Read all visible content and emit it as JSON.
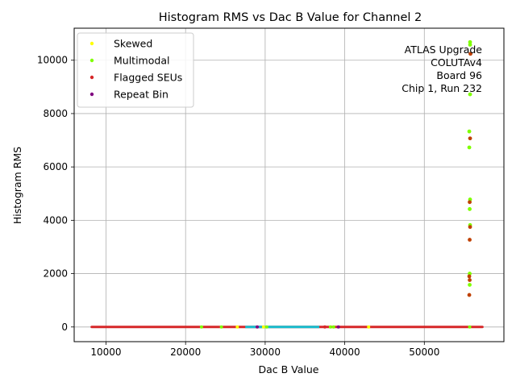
{
  "colors": {
    "skewed": "#ffff00",
    "multimodal": "#7fff00",
    "flagged": "#d62728",
    "repeat": "#800080",
    "dense_band": "#17becf",
    "flagged_on_green": "#bf4000",
    "grid": "#b0b0b0"
  },
  "chart_data": {
    "type": "scatter",
    "title": "Histogram RMS vs Dac B Value for Channel 2",
    "xlabel": "Dac B Value",
    "ylabel": "Histogram RMS",
    "xlim": [
      6000,
      60000
    ],
    "ylim": [
      -550,
      11200
    ],
    "xticks": [
      10000,
      20000,
      30000,
      40000,
      50000
    ],
    "yticks": [
      0,
      2000,
      4000,
      6000,
      8000,
      10000
    ],
    "grid": true,
    "legend_position": "top-left",
    "annotation": [
      "ATLAS Upgrade",
      "COLUTAv4",
      "Board 96",
      "Chip 1, Run 232"
    ],
    "baseline": {
      "x_range": [
        8200,
        57300
      ],
      "y": 0,
      "dense_band_x": [
        27500,
        36800
      ],
      "scattered_marks": [
        {
          "x": 22000,
          "series": "multimodal"
        },
        {
          "x": 24500,
          "series": "multimodal"
        },
        {
          "x": 26500,
          "series": "skewed"
        },
        {
          "x": 29000,
          "series": "repeat"
        },
        {
          "x": 29800,
          "series": "skewed"
        },
        {
          "x": 30200,
          "series": "multimodal"
        },
        {
          "x": 37500,
          "series": "flagged"
        },
        {
          "x": 38200,
          "series": "multimodal"
        },
        {
          "x": 38600,
          "series": "multimodal"
        },
        {
          "x": 39200,
          "series": "repeat"
        },
        {
          "x": 43000,
          "series": "skewed"
        },
        {
          "x": 55700,
          "series": "multimodal"
        }
      ]
    },
    "series": [
      {
        "name": "Skewed",
        "key": "skewed",
        "points": []
      },
      {
        "name": "Multimodal",
        "key": "multimodal",
        "points": [
          {
            "x": 55750,
            "y": 10680
          },
          {
            "x": 55750,
            "y": 10580
          },
          {
            "x": 55750,
            "y": 8720
          },
          {
            "x": 55650,
            "y": 7330
          },
          {
            "x": 55650,
            "y": 6730
          },
          {
            "x": 55750,
            "y": 4780
          },
          {
            "x": 55700,
            "y": 4420
          },
          {
            "x": 55750,
            "y": 3820
          },
          {
            "x": 55700,
            "y": 2000
          },
          {
            "x": 55700,
            "y": 1580
          }
        ]
      },
      {
        "name": "Flagged SEUs",
        "key": "flagged",
        "points": [
          {
            "x": 55800,
            "y": 10240
          },
          {
            "x": 55750,
            "y": 7070
          },
          {
            "x": 55700,
            "y": 4680
          },
          {
            "x": 55750,
            "y": 3750
          },
          {
            "x": 55700,
            "y": 3270
          },
          {
            "x": 55650,
            "y": 1900
          },
          {
            "x": 55700,
            "y": 1760
          },
          {
            "x": 55650,
            "y": 1200
          }
        ]
      },
      {
        "name": "Repeat Bin",
        "key": "repeat",
        "points": []
      }
    ]
  }
}
